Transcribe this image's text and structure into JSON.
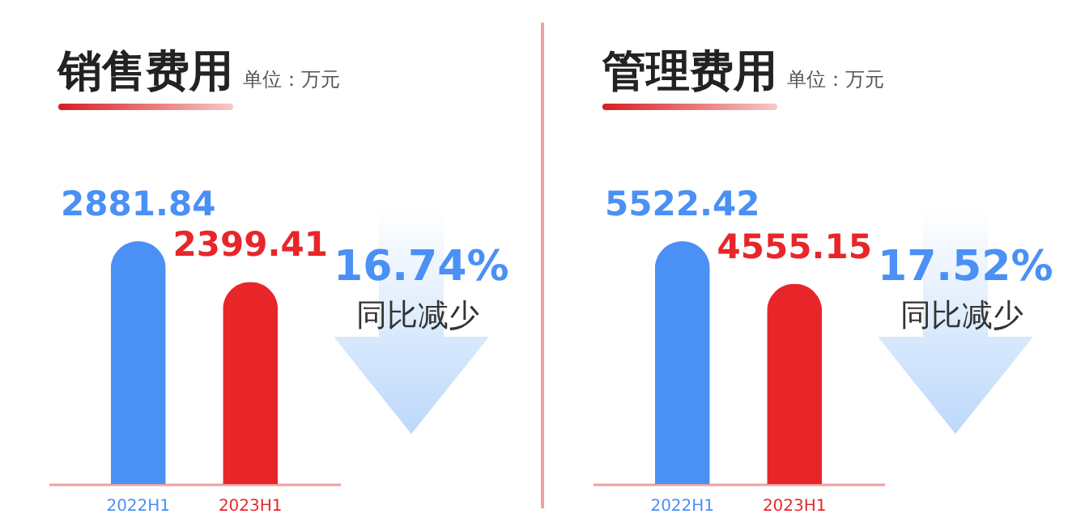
{
  "chart_data": [
    {
      "type": "bar",
      "title": "销售费用",
      "subtitle": "单位：万元",
      "categories": [
        "2022H1",
        "2023H1"
      ],
      "values": [
        2881.84,
        2399.41
      ],
      "colors": [
        "#4a90f5",
        "#e8262a"
      ],
      "data_labels": true,
      "annotations": [
        "16.74%",
        "同比减少"
      ]
    },
    {
      "type": "bar",
      "title": "管理费用",
      "subtitle": "单位：万元",
      "categories": [
        "2022H1",
        "2023H1"
      ],
      "values": [
        5522.42,
        4555.15
      ],
      "colors": [
        "#4a90f5",
        "#e8262a"
      ],
      "data_labels": true,
      "annotations": [
        "17.52%",
        "同比减少"
      ]
    }
  ]
}
